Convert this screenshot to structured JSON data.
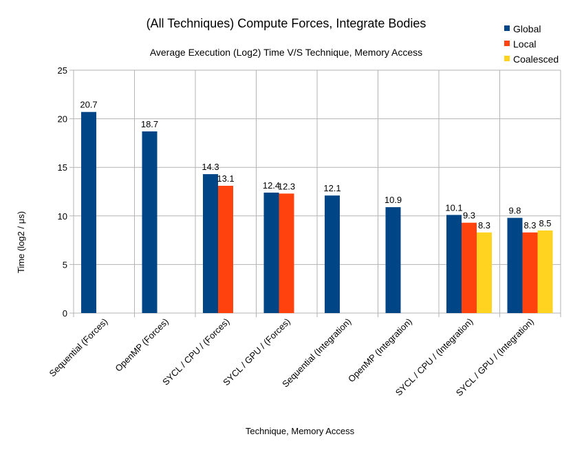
{
  "chart_data": {
    "type": "bar",
    "title": "(All Techniques) Compute Forces, Integrate Bodies",
    "subtitle": "Average Execution (Log2) Time V/S Technique, Memory Access",
    "xlabel": "Technique, Memory Access",
    "ylabel": "Time (log2 / μs)",
    "ylim": [
      0,
      25
    ],
    "yticks": [
      "0",
      "5",
      "10",
      "15",
      "20",
      "25"
    ],
    "grid": true,
    "legend_position": "top-right",
    "categories": [
      "Sequential (Forces)",
      "OpenMP (Forces)",
      "SYCL / CPU / (Forces)",
      "SYCL / GPU / (Forces)",
      "Sequential (Integration)",
      "OpenMP (Integration)",
      "SYCL / CPU / (Integration)",
      "SYCL / GPU / (Integration)"
    ],
    "series": [
      {
        "name": "Global",
        "color": "#004586",
        "values": [
          20.7,
          18.7,
          14.3,
          12.4,
          12.1,
          10.9,
          10.1,
          9.8
        ]
      },
      {
        "name": "Local",
        "color": "#ff420e",
        "values": [
          null,
          null,
          13.1,
          12.3,
          null,
          null,
          9.3,
          8.3
        ]
      },
      {
        "name": "Coalesced",
        "color": "#ffd320",
        "values": [
          null,
          null,
          null,
          null,
          null,
          null,
          8.3,
          8.5
        ]
      }
    ]
  }
}
